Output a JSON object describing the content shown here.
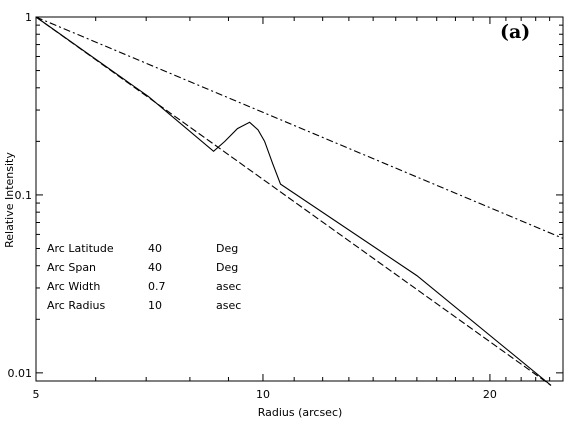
{
  "chart_data": {
    "type": "line",
    "title": "",
    "panel_label": "(a)",
    "xlabel": "Radius (arcsec)",
    "ylabel": "Relative Intensity",
    "xscale": "log",
    "yscale": "log",
    "xlim": [
      5,
      25
    ],
    "ylim": [
      0.009,
      1.0
    ],
    "xticks": [
      5,
      10,
      20
    ],
    "xtick_labels": [
      "5",
      "10",
      "20"
    ],
    "yticks": [
      1,
      0.1,
      0.01
    ],
    "ytick_labels": [
      "1",
      "0.1",
      "0.01"
    ],
    "grid": false,
    "legend": "none",
    "series": [
      {
        "style": "dash-dot",
        "color": "#000000",
        "x": [
          5,
          25
        ],
        "y": [
          1.0,
          0.057
        ]
      },
      {
        "style": "dashed",
        "color": "#000000",
        "x": [
          5,
          24.1
        ],
        "y": [
          1.0,
          0.0085
        ]
      },
      {
        "style": "solid",
        "color": "#000000",
        "x": [
          5,
          7.05,
          8.6,
          8.9,
          9.25,
          9.6,
          9.85,
          10.05,
          10.3,
          10.55,
          16.0,
          24.1
        ],
        "y": [
          1.0,
          0.357,
          0.176,
          0.2,
          0.236,
          0.256,
          0.232,
          0.2,
          0.15,
          0.115,
          0.0352,
          0.0085
        ]
      }
    ],
    "annotations": {
      "rows": [
        {
          "name": "Arc Latitude",
          "value": "40",
          "unit": "Deg"
        },
        {
          "name": "Arc Span",
          "value": "40",
          "unit": "Deg"
        },
        {
          "name": "Arc Width",
          "value": "0.7",
          "unit": "asec"
        },
        {
          "name": "Arc Radius",
          "value": "10",
          "unit": "asec"
        }
      ]
    }
  }
}
